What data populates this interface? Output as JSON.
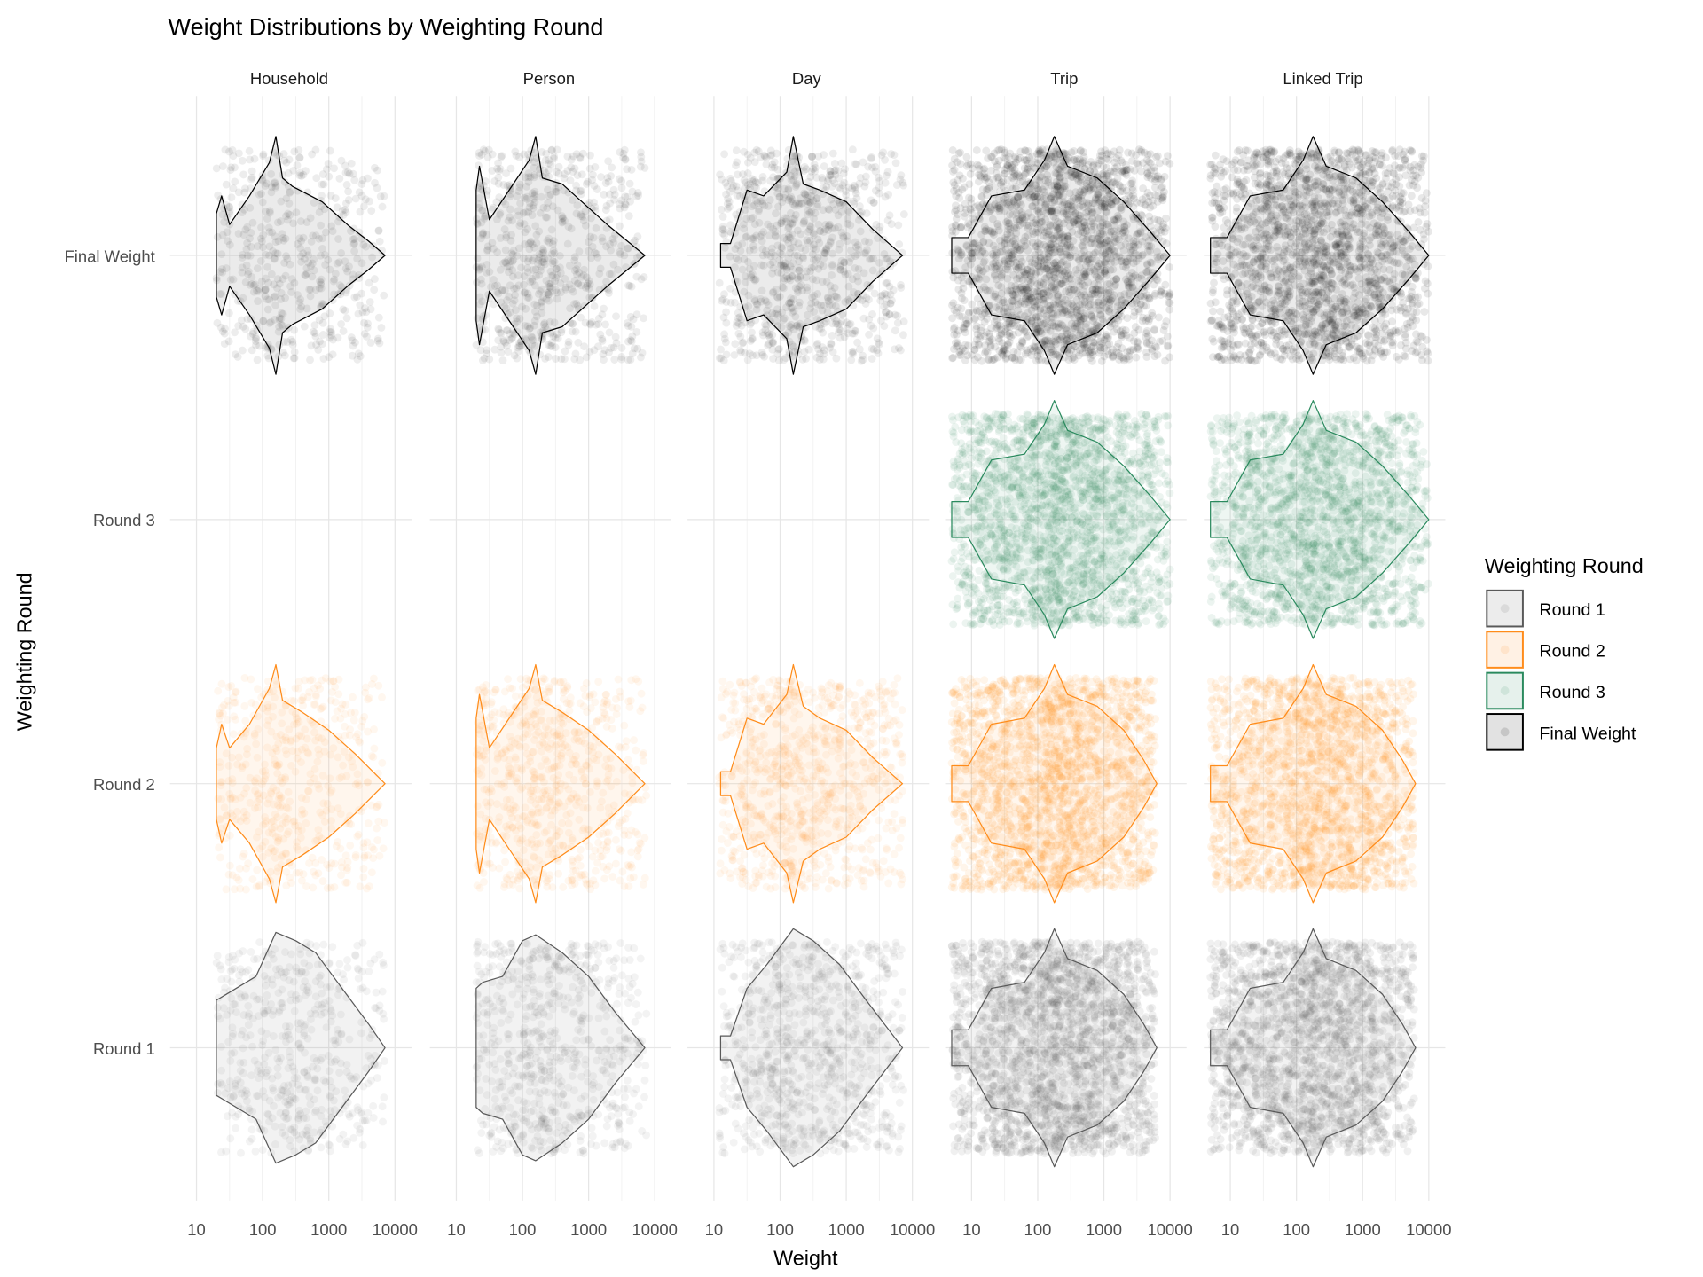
{
  "chart_data": {
    "type": "violin",
    "title": "Weight Distributions by Weighting Round",
    "xlabel": "Weight",
    "ylabel": "Weighting Round",
    "x_scale": "log10",
    "x_ticks": [
      "10",
      "100",
      "1000",
      "10000"
    ],
    "x_tick_values": [
      10,
      100,
      1000,
      10000
    ],
    "grid": true,
    "facets": [
      "Household",
      "Person",
      "Day",
      "Trip",
      "Linked Trip"
    ],
    "rows": [
      "Final Weight",
      "Round 3",
      "Round 2",
      "Round 1"
    ],
    "legend": {
      "title": "Weighting Round",
      "placement": "right",
      "entries": [
        {
          "label": "Round 1",
          "color": "#595959"
        },
        {
          "label": "Round 2",
          "color": "#FF8C1A"
        },
        {
          "label": "Round 3",
          "color": "#2A8A5E"
        },
        {
          "label": "Final Weight",
          "color": "#000000"
        }
      ]
    },
    "cells": [
      {
        "facet": "Household",
        "round": "Final Weight",
        "min": 20,
        "max": 7000,
        "points": 500,
        "density": [
          [
            1.3,
            0.35
          ],
          [
            1.38,
            0.5
          ],
          [
            1.5,
            0.26
          ],
          [
            1.8,
            0.5
          ],
          [
            2.1,
            0.78
          ],
          [
            2.2,
            1.0
          ],
          [
            2.3,
            0.65
          ],
          [
            2.45,
            0.58
          ],
          [
            2.9,
            0.45
          ],
          [
            3.3,
            0.25
          ],
          [
            3.6,
            0.12
          ],
          [
            3.85,
            0.0
          ]
        ]
      },
      {
        "facet": "Household",
        "round": "Round 2",
        "min": 20,
        "max": 7000,
        "points": 500,
        "density": [
          [
            1.3,
            0.3
          ],
          [
            1.38,
            0.5
          ],
          [
            1.5,
            0.3
          ],
          [
            1.8,
            0.5
          ],
          [
            2.1,
            0.8
          ],
          [
            2.2,
            1.0
          ],
          [
            2.3,
            0.7
          ],
          [
            2.6,
            0.6
          ],
          [
            3.0,
            0.45
          ],
          [
            3.4,
            0.25
          ],
          [
            3.85,
            0.0
          ]
        ]
      },
      {
        "facet": "Household",
        "round": "Round 1",
        "min": 20,
        "max": 7000,
        "points": 500,
        "density": [
          [
            1.3,
            0.4
          ],
          [
            1.6,
            0.5
          ],
          [
            1.9,
            0.6
          ],
          [
            2.2,
            0.97
          ],
          [
            2.5,
            0.9
          ],
          [
            2.8,
            0.8
          ],
          [
            3.2,
            0.5
          ],
          [
            3.6,
            0.2
          ],
          [
            3.85,
            0.0
          ]
        ]
      },
      {
        "facet": "Person",
        "round": "Final Weight",
        "min": 20,
        "max": 7500,
        "points": 700,
        "density": [
          [
            1.3,
            0.55
          ],
          [
            1.35,
            0.75
          ],
          [
            1.5,
            0.3
          ],
          [
            1.8,
            0.55
          ],
          [
            2.1,
            0.8
          ],
          [
            2.2,
            1.0
          ],
          [
            2.3,
            0.65
          ],
          [
            2.6,
            0.6
          ],
          [
            2.9,
            0.45
          ],
          [
            3.3,
            0.25
          ],
          [
            3.85,
            0.0
          ]
        ]
      },
      {
        "facet": "Person",
        "round": "Round 2",
        "min": 20,
        "max": 7500,
        "points": 700,
        "density": [
          [
            1.3,
            0.55
          ],
          [
            1.35,
            0.75
          ],
          [
            1.5,
            0.3
          ],
          [
            1.8,
            0.55
          ],
          [
            2.1,
            0.8
          ],
          [
            2.2,
            1.0
          ],
          [
            2.3,
            0.7
          ],
          [
            2.6,
            0.6
          ],
          [
            3.0,
            0.45
          ],
          [
            3.4,
            0.25
          ],
          [
            3.85,
            0.0
          ]
        ]
      },
      {
        "facet": "Person",
        "round": "Round 1",
        "min": 20,
        "max": 7500,
        "points": 700,
        "density": [
          [
            1.3,
            0.5
          ],
          [
            1.4,
            0.55
          ],
          [
            1.7,
            0.6
          ],
          [
            2.0,
            0.9
          ],
          [
            2.2,
            0.95
          ],
          [
            2.6,
            0.8
          ],
          [
            3.0,
            0.6
          ],
          [
            3.4,
            0.3
          ],
          [
            3.85,
            0.0
          ]
        ]
      },
      {
        "facet": "Day",
        "round": "Final Weight",
        "min": 12,
        "max": 7500,
        "points": 900,
        "density": [
          [
            1.1,
            0.1
          ],
          [
            1.25,
            0.1
          ],
          [
            1.5,
            0.55
          ],
          [
            1.75,
            0.5
          ],
          [
            2.1,
            0.7
          ],
          [
            2.2,
            1.0
          ],
          [
            2.35,
            0.6
          ],
          [
            2.6,
            0.55
          ],
          [
            3.0,
            0.45
          ],
          [
            3.4,
            0.22
          ],
          [
            3.85,
            0.0
          ]
        ]
      },
      {
        "facet": "Day",
        "round": "Round 2",
        "min": 12,
        "max": 7500,
        "points": 900,
        "density": [
          [
            1.1,
            0.1
          ],
          [
            1.25,
            0.1
          ],
          [
            1.5,
            0.55
          ],
          [
            1.75,
            0.5
          ],
          [
            2.1,
            0.75
          ],
          [
            2.2,
            1.0
          ],
          [
            2.35,
            0.65
          ],
          [
            2.6,
            0.55
          ],
          [
            3.0,
            0.45
          ],
          [
            3.4,
            0.22
          ],
          [
            3.85,
            0.0
          ]
        ]
      },
      {
        "facet": "Day",
        "round": "Round 1",
        "min": 12,
        "max": 7500,
        "points": 900,
        "density": [
          [
            1.1,
            0.1
          ],
          [
            1.25,
            0.1
          ],
          [
            1.5,
            0.5
          ],
          [
            1.8,
            0.7
          ],
          [
            2.2,
            1.0
          ],
          [
            2.5,
            0.9
          ],
          [
            2.9,
            0.7
          ],
          [
            3.3,
            0.4
          ],
          [
            3.85,
            0.0
          ]
        ]
      },
      {
        "facet": "Trip",
        "round": "Final Weight",
        "min": 5,
        "max": 10000,
        "points": 2200,
        "density": [
          [
            0.7,
            0.15
          ],
          [
            0.95,
            0.15
          ],
          [
            1.3,
            0.5
          ],
          [
            1.8,
            0.55
          ],
          [
            2.1,
            0.8
          ],
          [
            2.25,
            1.0
          ],
          [
            2.45,
            0.75
          ],
          [
            2.9,
            0.65
          ],
          [
            3.3,
            0.45
          ],
          [
            3.7,
            0.2
          ],
          [
            4.0,
            0.0
          ]
        ]
      },
      {
        "facet": "Trip",
        "round": "Round 3",
        "min": 5,
        "max": 10000,
        "points": 2200,
        "density": [
          [
            0.7,
            0.15
          ],
          [
            0.95,
            0.15
          ],
          [
            1.3,
            0.5
          ],
          [
            1.8,
            0.55
          ],
          [
            2.1,
            0.8
          ],
          [
            2.25,
            1.0
          ],
          [
            2.45,
            0.75
          ],
          [
            2.9,
            0.65
          ],
          [
            3.3,
            0.45
          ],
          [
            3.7,
            0.2
          ],
          [
            4.0,
            0.0
          ]
        ]
      },
      {
        "facet": "Trip",
        "round": "Round 2",
        "min": 5,
        "max": 6000,
        "points": 2200,
        "density": [
          [
            0.7,
            0.15
          ],
          [
            0.95,
            0.15
          ],
          [
            1.3,
            0.5
          ],
          [
            1.8,
            0.55
          ],
          [
            2.1,
            0.8
          ],
          [
            2.25,
            1.0
          ],
          [
            2.45,
            0.75
          ],
          [
            2.9,
            0.65
          ],
          [
            3.3,
            0.45
          ],
          [
            3.6,
            0.2
          ],
          [
            3.8,
            0.0
          ]
        ]
      },
      {
        "facet": "Trip",
        "round": "Round 1",
        "min": 5,
        "max": 6000,
        "points": 2200,
        "density": [
          [
            0.7,
            0.15
          ],
          [
            0.95,
            0.15
          ],
          [
            1.3,
            0.5
          ],
          [
            1.8,
            0.55
          ],
          [
            2.1,
            0.8
          ],
          [
            2.25,
            1.0
          ],
          [
            2.45,
            0.75
          ],
          [
            2.9,
            0.65
          ],
          [
            3.3,
            0.45
          ],
          [
            3.6,
            0.2
          ],
          [
            3.8,
            0.0
          ]
        ]
      },
      {
        "facet": "Linked Trip",
        "round": "Final Weight",
        "min": 5,
        "max": 10000,
        "points": 2000,
        "density": [
          [
            0.7,
            0.15
          ],
          [
            0.95,
            0.15
          ],
          [
            1.3,
            0.5
          ],
          [
            1.8,
            0.55
          ],
          [
            2.1,
            0.8
          ],
          [
            2.25,
            1.0
          ],
          [
            2.45,
            0.75
          ],
          [
            2.9,
            0.65
          ],
          [
            3.3,
            0.45
          ],
          [
            3.7,
            0.2
          ],
          [
            4.0,
            0.0
          ]
        ]
      },
      {
        "facet": "Linked Trip",
        "round": "Round 3",
        "min": 5,
        "max": 10000,
        "points": 2000,
        "density": [
          [
            0.7,
            0.15
          ],
          [
            0.95,
            0.15
          ],
          [
            1.3,
            0.5
          ],
          [
            1.8,
            0.55
          ],
          [
            2.1,
            0.8
          ],
          [
            2.25,
            1.0
          ],
          [
            2.45,
            0.75
          ],
          [
            2.9,
            0.65
          ],
          [
            3.3,
            0.45
          ],
          [
            3.7,
            0.2
          ],
          [
            4.0,
            0.0
          ]
        ]
      },
      {
        "facet": "Linked Trip",
        "round": "Round 2",
        "min": 5,
        "max": 6000,
        "points": 2000,
        "density": [
          [
            0.7,
            0.15
          ],
          [
            0.95,
            0.15
          ],
          [
            1.3,
            0.5
          ],
          [
            1.8,
            0.55
          ],
          [
            2.1,
            0.8
          ],
          [
            2.25,
            1.0
          ],
          [
            2.45,
            0.75
          ],
          [
            2.9,
            0.65
          ],
          [
            3.3,
            0.45
          ],
          [
            3.6,
            0.2
          ],
          [
            3.8,
            0.0
          ]
        ]
      },
      {
        "facet": "Linked Trip",
        "round": "Round 1",
        "min": 5,
        "max": 6000,
        "points": 2000,
        "density": [
          [
            0.7,
            0.15
          ],
          [
            0.95,
            0.15
          ],
          [
            1.3,
            0.5
          ],
          [
            1.8,
            0.55
          ],
          [
            2.1,
            0.8
          ],
          [
            2.25,
            1.0
          ],
          [
            2.45,
            0.75
          ],
          [
            2.9,
            0.65
          ],
          [
            3.3,
            0.45
          ],
          [
            3.6,
            0.2
          ],
          [
            3.8,
            0.0
          ]
        ]
      }
    ]
  }
}
